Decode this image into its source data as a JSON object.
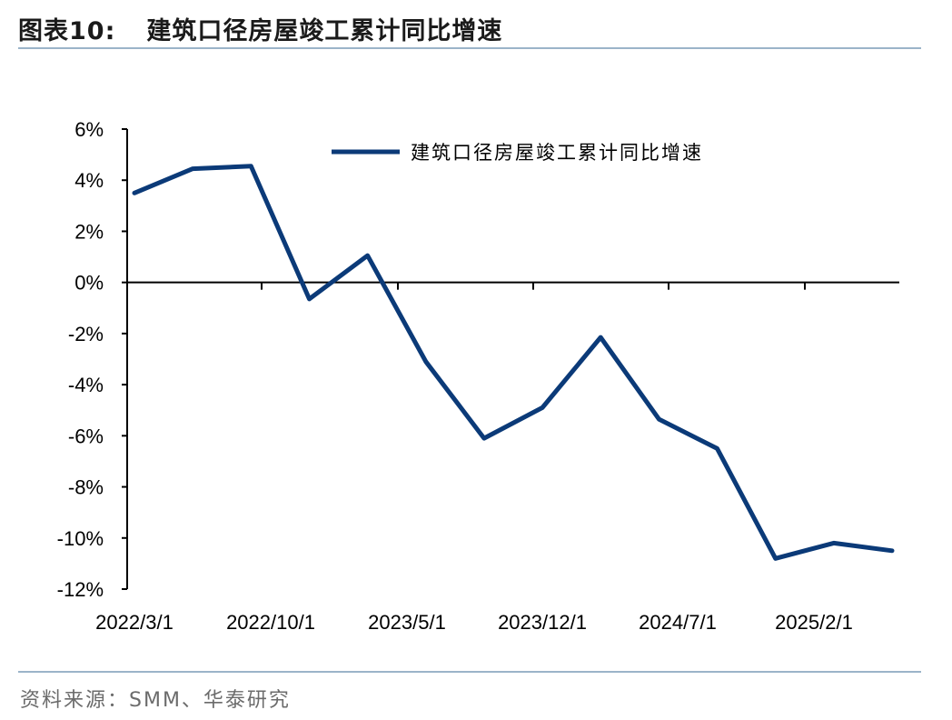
{
  "header": {
    "figure_number": "图表10:",
    "title": "建筑口径房屋竣工累计同比增速"
  },
  "footer": {
    "source": "资料来源：SMM、华泰研究"
  },
  "chart_data": {
    "type": "line",
    "title": "建筑口径房屋竣工累计同比增速",
    "ylim": [
      -12,
      6
    ],
    "y_ticks": [
      6,
      4,
      2,
      0,
      -2,
      -4,
      -6,
      -8,
      -10,
      -12
    ],
    "y_tick_labels": [
      "6%",
      "4%",
      "2%",
      "0%",
      "-2%",
      "-4%",
      "-6%",
      "-8%",
      "-10%",
      "-12%"
    ],
    "x_tick_labels": [
      "2022/3/1",
      "2022/10/1",
      "2023/5/1",
      "2023/12/1",
      "2024/7/1",
      "2025/2/1"
    ],
    "series_color": "#0b3a78",
    "legend_position": "top-right",
    "series": [
      {
        "name": "建筑口径房屋竣工累计同比增速",
        "values": [
          3.5,
          4.45,
          4.55,
          -0.65,
          1.05,
          -3.1,
          -6.1,
          -4.9,
          -2.15,
          -5.35,
          -6.5,
          -10.8,
          -10.2,
          -10.5
        ]
      }
    ]
  }
}
